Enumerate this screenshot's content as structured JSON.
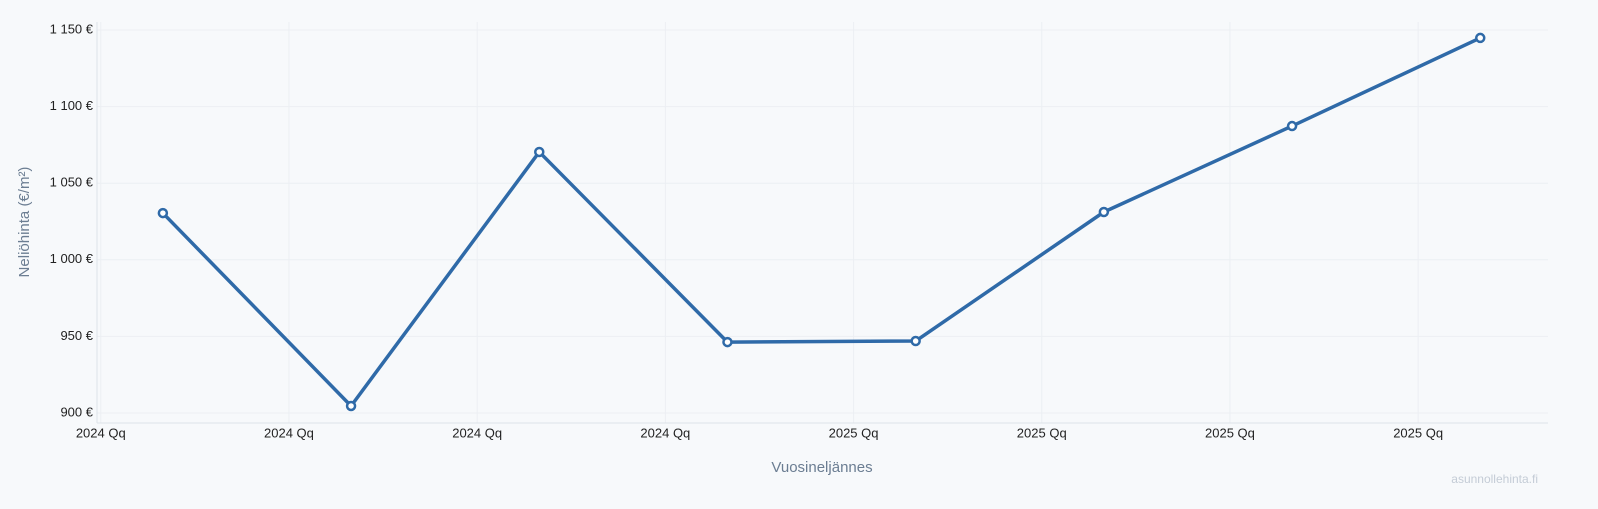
{
  "chart_data": {
    "type": "line",
    "x_label": "Vuosineljännes",
    "y_label": "Neliöhinta (€/m²)",
    "watermark": "asunnollehinta.fi",
    "x": [
      0.33,
      1.33,
      2.33,
      3.33,
      4.33,
      5.33,
      6.33,
      7.33
    ],
    "series": [
      {
        "color": "#2f6aa8",
        "values": [
          1030.5,
          904.6,
          1070.4,
          946.3,
          947,
          1031.2,
          1087.3,
          1144.8
        ]
      }
    ],
    "xlim": [
      -0.02,
      7.69
    ],
    "xticks": [
      {
        "value": 0,
        "label": "2024 Qq"
      },
      {
        "value": 1,
        "label": "2024 Qq"
      },
      {
        "value": 2,
        "label": "2024 Qq"
      },
      {
        "value": 3,
        "label": "2024 Qq"
      },
      {
        "value": 4,
        "label": "2025 Qq"
      },
      {
        "value": 5,
        "label": "2025 Qq"
      },
      {
        "value": 6,
        "label": "2025 Qq"
      },
      {
        "value": 7,
        "label": "2025 Qq"
      }
    ],
    "ylim": [
      893.5,
      1155.2
    ],
    "yticks": [
      {
        "value": 900,
        "label": "900 €"
      },
      {
        "value": 950,
        "label": "950 €"
      },
      {
        "value": 1000,
        "label": "1 000 €"
      },
      {
        "value": 1050,
        "label": "1 050 €"
      },
      {
        "value": 1100,
        "label": "1 100 €"
      },
      {
        "value": 1150,
        "label": "1 150 €"
      }
    ],
    "grid": true
  }
}
